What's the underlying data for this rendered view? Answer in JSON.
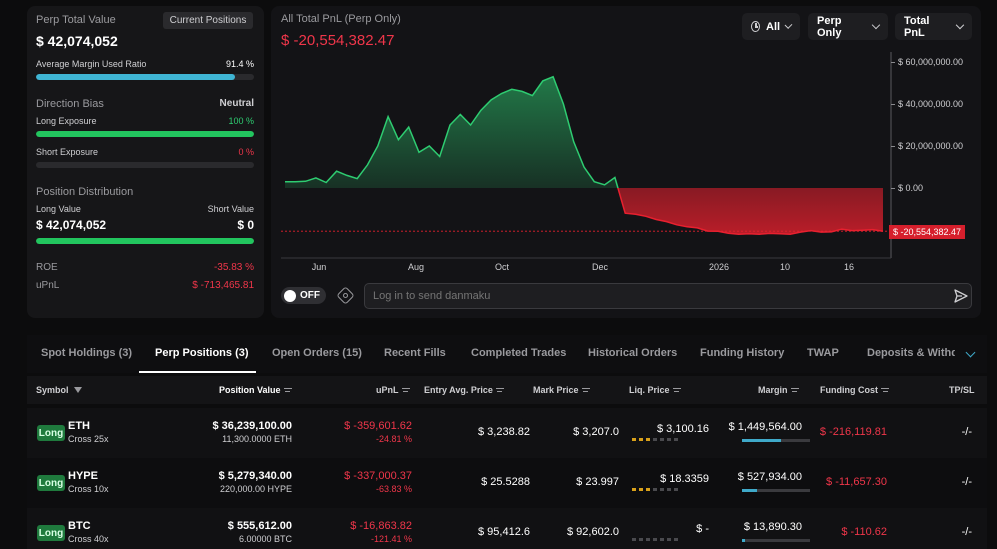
{
  "summary": {
    "perp_total_value_label": "Perp Total Value",
    "current_positions_label": "Current Positions",
    "perp_total_value": "$ 42,074,052",
    "avg_margin_label": "Average Margin Used Ratio",
    "avg_margin_value": "91.4 %",
    "avg_margin_fraction": 0.914,
    "direction_bias_label": "Direction Bias",
    "direction_bias_value": "Neutral",
    "long_exposure_label": "Long Exposure",
    "long_exposure_value": "100 %",
    "long_exposure_fraction": 1.0,
    "short_exposure_label": "Short Exposure",
    "short_exposure_value": "0 %",
    "short_exposure_fraction": 0.0,
    "position_distribution_label": "Position Distribution",
    "long_value_label": "Long Value",
    "short_value_label": "Short Value",
    "long_value": "$ 42,074,052",
    "short_value": "$ 0",
    "long_value_fraction": 1.0,
    "roe_label": "ROE",
    "roe_value": "-35.83 %",
    "upnl_label": "uPnL",
    "upnl_value": "$ -713,465.81"
  },
  "chart_header": {
    "title": "All Total PnL (Perp Only)",
    "value": "$ -20,554,382.47",
    "filter_range": "All",
    "filter_scope": "Perp Only",
    "filter_metric": "Total PnL"
  },
  "chart_data": {
    "type": "area",
    "y_ticks": [
      "$ 60,000,000.00",
      "$ 40,000,000.00",
      "$ 20,000,000.00",
      "$ 0.00"
    ],
    "x_ticks": [
      "Jun",
      "Aug",
      "Oct",
      "Dec",
      "2026",
      "10",
      "16"
    ],
    "current_label": "$ -20,554,382.47",
    "ylim": [
      -28000000,
      62000000
    ],
    "series": [
      {
        "values": [
          3000000,
          3000000,
          3200000,
          4800000,
          2600000,
          8000000,
          6000000,
          4500000,
          11000000,
          20000000,
          34000000,
          23000000,
          29000000,
          17000000,
          20000000,
          15000000,
          30000000,
          35000000,
          30000000,
          37000000,
          42000000,
          45000000,
          47000000,
          46000000,
          44000000,
          51000000,
          53000000,
          40000000,
          22000000,
          10000000,
          3000000,
          1500000,
          5000000,
          -12000000,
          -12500000,
          -13500000,
          -15000000,
          -16000000,
          -17500000,
          -18500000,
          -19000000,
          -20500000,
          -20600000,
          -21500000,
          -22000000,
          -21800000,
          -22000000,
          -21600000,
          -21800000,
          -22000000,
          -21000000,
          -20300000,
          -21000000,
          -20900000,
          -19600000,
          -20300000,
          -20100000,
          -19800000,
          -20554382
        ]
      }
    ]
  },
  "danmaku": {
    "toggle_label": "OFF",
    "placeholder": "Log in to send danmaku"
  },
  "tabs": [
    "Spot Holdings (3)",
    "Perp Positions (3)",
    "Open Orders (15)",
    "Recent Fills",
    "Completed Trades",
    "Historical Orders",
    "Funding History",
    "TWAP",
    "Deposits & Withdra"
  ],
  "table": {
    "headers": {
      "symbol": "Symbol",
      "position_value": "Position Value",
      "upnl": "uPnL",
      "entry": "Entry Avg. Price",
      "mark": "Mark Price",
      "liq": "Liq. Price",
      "margin": "Margin",
      "funding": "Funding Cost",
      "tpsl": "TP/SL"
    },
    "rows": [
      {
        "side": "Long",
        "symbol": "ETH",
        "leverage": "Cross 25x",
        "value": "$ 36,239,100.00",
        "size": "11,300.0000 ETH",
        "upnl": "$ -359,601.62",
        "upnl_pct": "-24.81 %",
        "entry": "$ 3,238.82",
        "mark": "$ 3,207.0",
        "liq": "$ 3,100.16",
        "liq_fraction": 0.4,
        "margin": "$ 1,449,564.00",
        "margin_fraction": 0.58,
        "funding": "$ -216,119.81",
        "tpsl": "-/-"
      },
      {
        "side": "Long",
        "symbol": "HYPE",
        "leverage": "Cross 10x",
        "value": "$ 5,279,340.00",
        "size": "220,000.00 HYPE",
        "upnl": "$ -337,000.37",
        "upnl_pct": "-63.83 %",
        "entry": "$ 25.5288",
        "mark": "$ 23.997",
        "liq": "$ 18.3359",
        "liq_fraction": 0.4,
        "margin": "$ 527,934.00",
        "margin_fraction": 0.22,
        "funding": "$ -11,657.30",
        "tpsl": "-/-"
      },
      {
        "side": "Long",
        "symbol": "BTC",
        "leverage": "Cross 40x",
        "value": "$ 555,612.00",
        "size": "6.00000 BTC",
        "upnl": "$ -16,863.82",
        "upnl_pct": "-121.41 %",
        "entry": "$ 95,412.6",
        "mark": "$ 92,602.0",
        "liq": "$ -",
        "liq_fraction": 0.0,
        "margin": "$ 13,890.30",
        "margin_fraction": 0.05,
        "funding": "$ -110.62",
        "tpsl": "-/-"
      }
    ]
  },
  "colors": {
    "green": "#2ecc71",
    "red": "#f0364a",
    "accent_blue": "#3fa9c9"
  }
}
